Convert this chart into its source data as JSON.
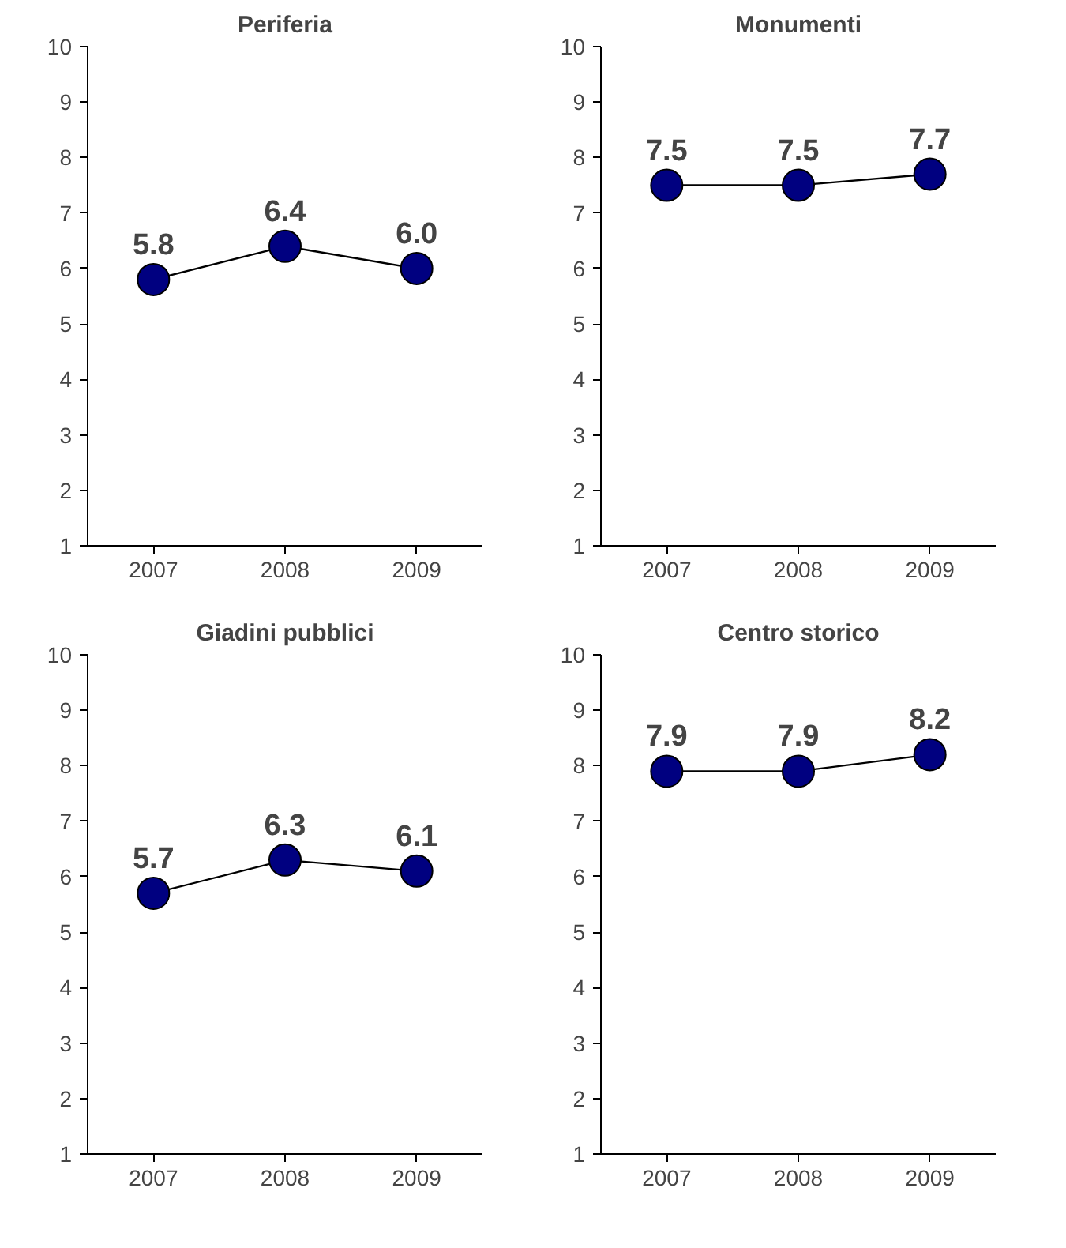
{
  "chart_data": [
    {
      "type": "line",
      "title": "Periferia",
      "categories": [
        "2007",
        "2008",
        "2009"
      ],
      "series": [
        {
          "color": "#000080",
          "values": [
            5.8,
            6.4,
            6.0
          ],
          "value_labels": [
            "5.8",
            "6.4",
            "6.0"
          ]
        }
      ],
      "ylim": [
        1,
        10
      ],
      "yticks": [
        1,
        2,
        3,
        4,
        5,
        6,
        7,
        8,
        9,
        10
      ],
      "marker": "circle"
    },
    {
      "type": "line",
      "title": "Monumenti",
      "categories": [
        "2007",
        "2008",
        "2009"
      ],
      "series": [
        {
          "color": "#000080",
          "values": [
            7.5,
            7.5,
            7.7
          ],
          "value_labels": [
            "7.5",
            "7.5",
            "7.7"
          ]
        }
      ],
      "ylim": [
        1,
        10
      ],
      "yticks": [
        1,
        2,
        3,
        4,
        5,
        6,
        7,
        8,
        9,
        10
      ],
      "marker": "circle"
    },
    {
      "type": "line",
      "title": "Giadini pubblici",
      "categories": [
        "2007",
        "2008",
        "2009"
      ],
      "series": [
        {
          "color": "#000080",
          "values": [
            5.7,
            6.3,
            6.1
          ],
          "value_labels": [
            "5.7",
            "6.3",
            "6.1"
          ]
        }
      ],
      "ylim": [
        1,
        10
      ],
      "yticks": [
        1,
        2,
        3,
        4,
        5,
        6,
        7,
        8,
        9,
        10
      ],
      "marker": "circle"
    },
    {
      "type": "line",
      "title": "Centro storico",
      "categories": [
        "2007",
        "2008",
        "2009"
      ],
      "series": [
        {
          "color": "#000080",
          "values": [
            7.9,
            7.9,
            8.2
          ],
          "value_labels": [
            "7.9",
            "7.9",
            "8.2"
          ]
        }
      ],
      "ylim": [
        1,
        10
      ],
      "yticks": [
        1,
        2,
        3,
        4,
        5,
        6,
        7,
        8,
        9,
        10
      ],
      "marker": "circle"
    }
  ]
}
